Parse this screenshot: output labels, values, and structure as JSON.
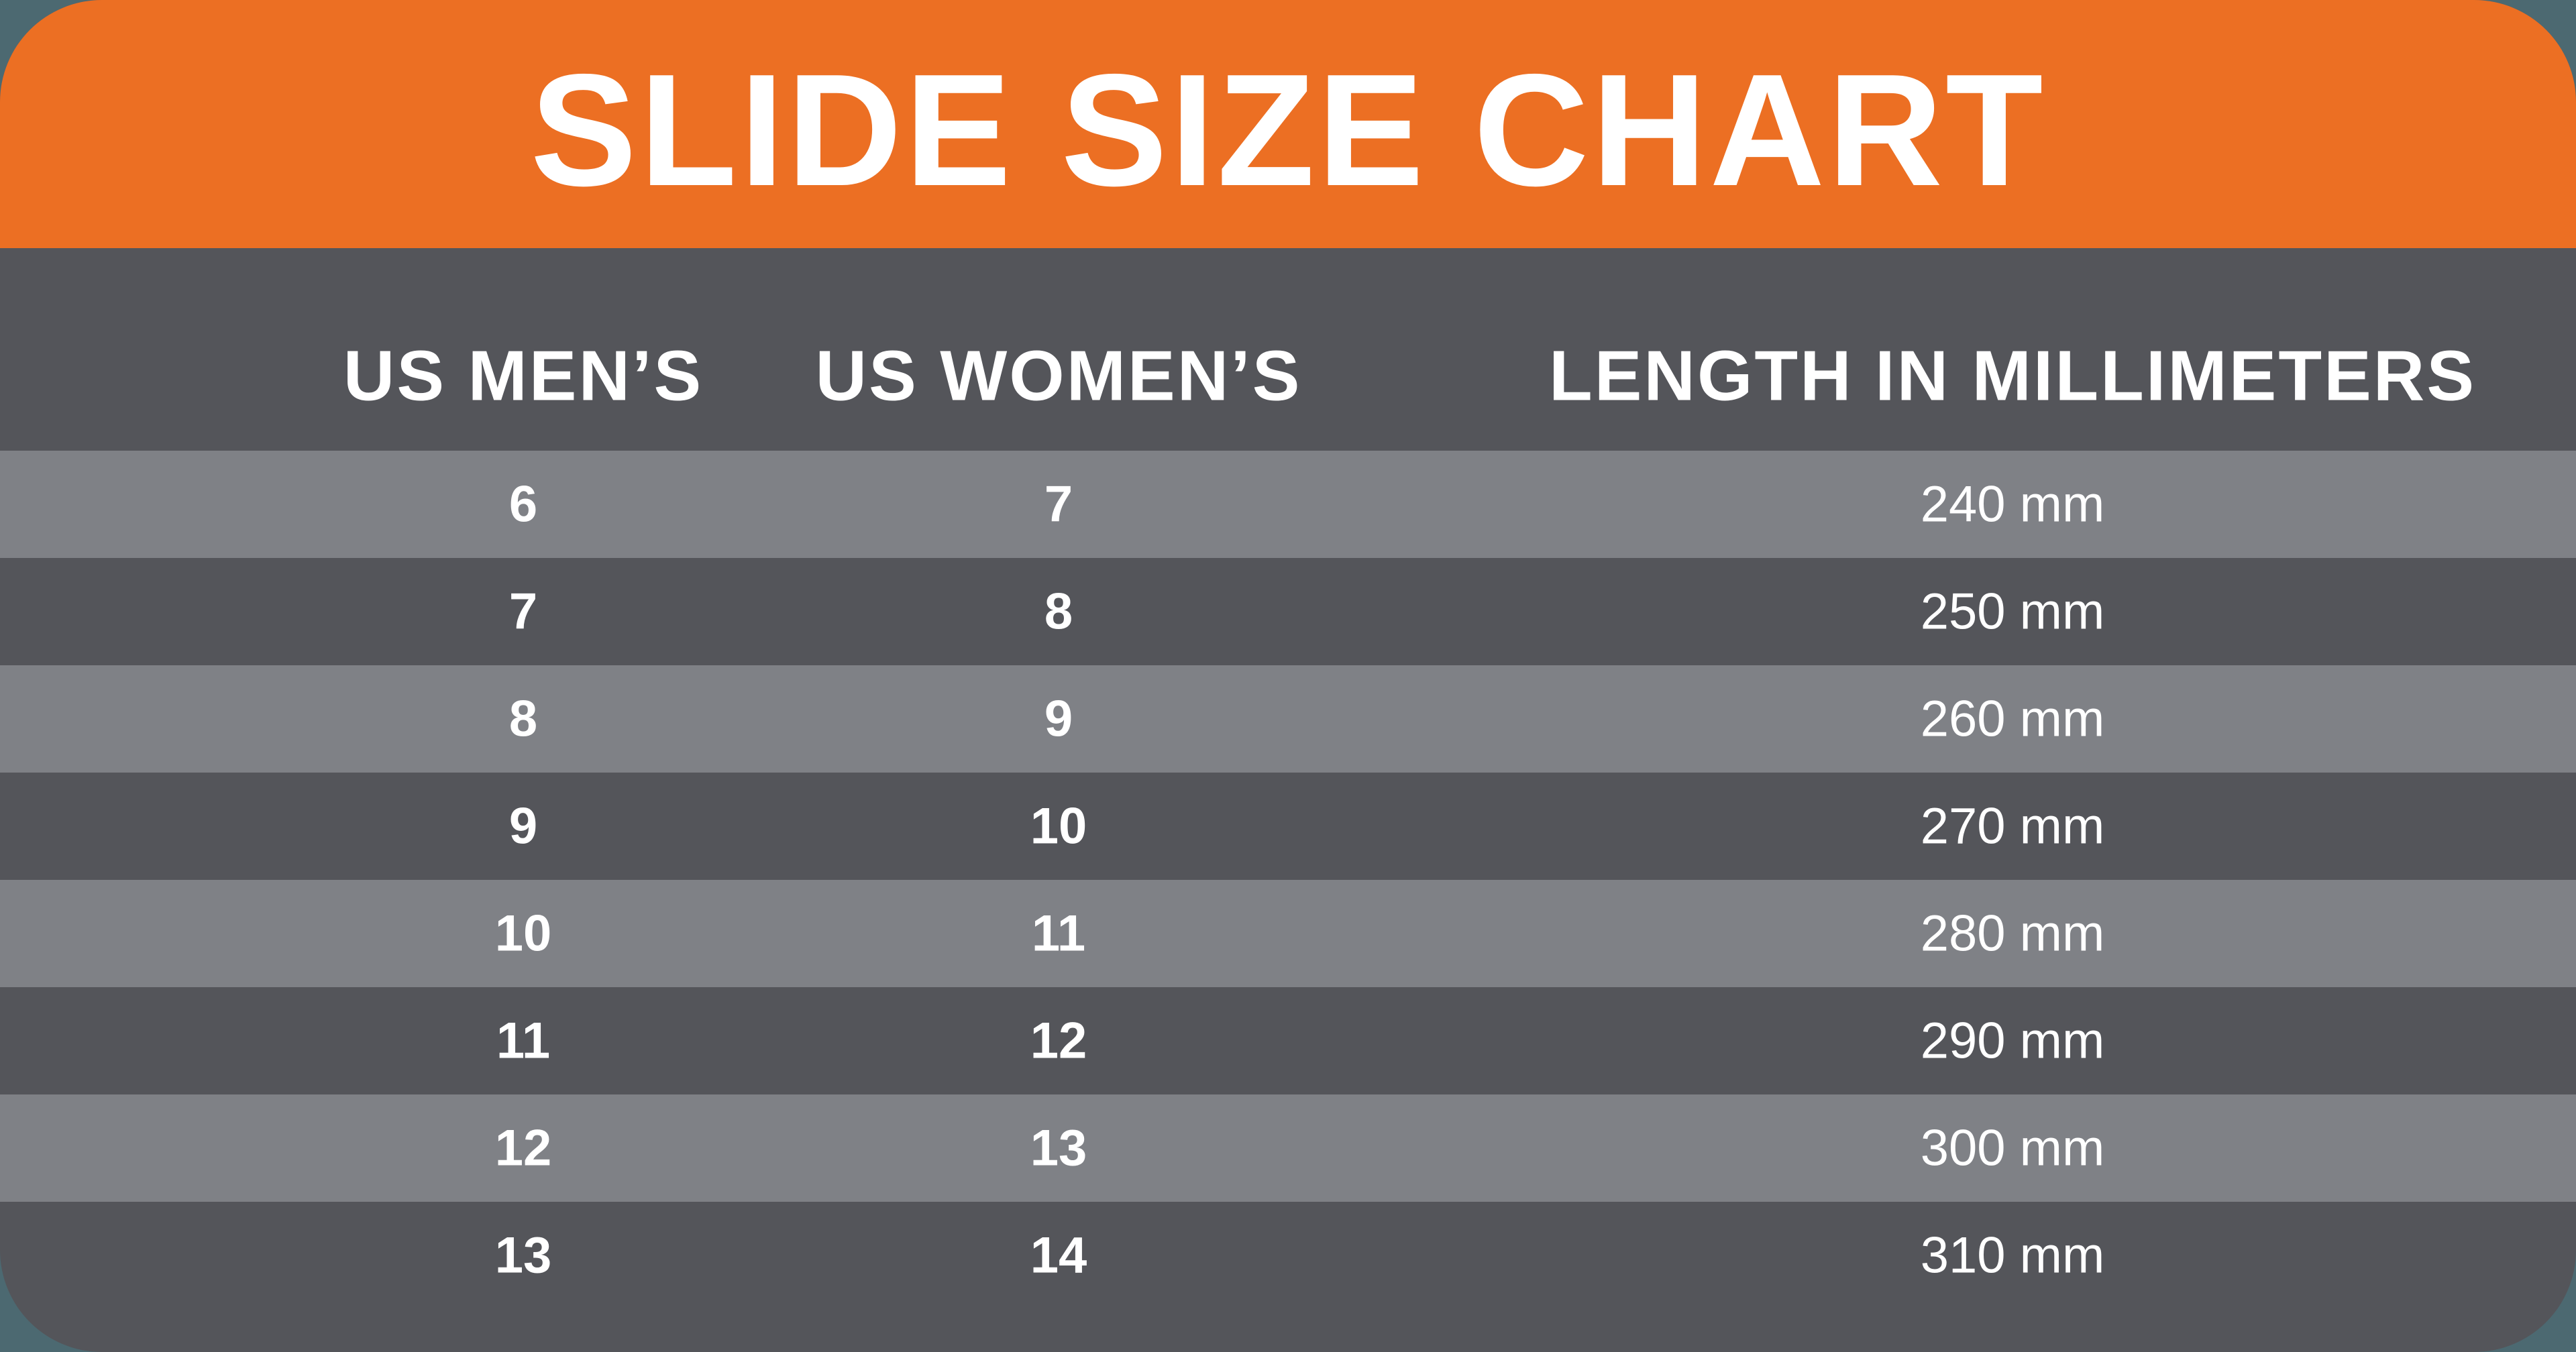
{
  "header": {
    "title": "SLIDE SIZE CHART"
  },
  "colors": {
    "accent_orange": "#EC6F23",
    "table_dark_gray": "#54555A",
    "table_light_gray": "#7F8186",
    "page_background_teal": "#4C6971",
    "text_white": "#FFFFFF"
  },
  "chart_data": {
    "type": "table",
    "title": "SLIDE SIZE CHART",
    "columns": [
      "US MEN’S",
      "US WOMEN’S",
      "LENGTH IN MILLIMETERS"
    ],
    "rows": [
      [
        "6",
        "7",
        "240 mm"
      ],
      [
        "7",
        "8",
        "250 mm"
      ],
      [
        "8",
        "9",
        "260 mm"
      ],
      [
        "9",
        "10",
        "270 mm"
      ],
      [
        "10",
        "11",
        "280 mm"
      ],
      [
        "11",
        "12",
        "290 mm"
      ],
      [
        "12",
        "13",
        "300 mm"
      ],
      [
        "13",
        "14",
        "310 mm"
      ]
    ],
    "units": "mm",
    "us_mens_sizes": [
      6,
      7,
      8,
      9,
      10,
      11,
      12,
      13
    ],
    "us_womens_sizes": [
      7,
      8,
      9,
      10,
      11,
      12,
      13,
      14
    ],
    "length_mm": [
      240,
      250,
      260,
      270,
      280,
      290,
      300,
      310
    ],
    "layout_hints": {
      "striped_rows": true,
      "first_data_row_shade": "light",
      "header_band": "orange",
      "corner_radius_px": 152
    }
  }
}
